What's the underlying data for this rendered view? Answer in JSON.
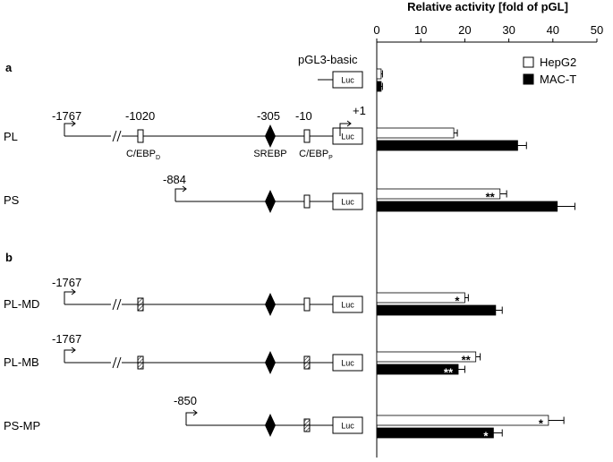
{
  "chart_data": {
    "type": "bar",
    "orientation": "horizontal",
    "title": "Relative activity [fold of pGL]",
    "categories": [
      "pGL3-basic",
      "PL",
      "PS",
      "PL-MD",
      "PL-MB",
      "PS-MP"
    ],
    "series": [
      {
        "name": "HepG2",
        "color": "#ffffff",
        "values": [
          1,
          17.5,
          28,
          20,
          22.5,
          39
        ],
        "errors": [
          0.3,
          0.8,
          1.5,
          0.8,
          1,
          3.5
        ],
        "significance": [
          null,
          null,
          "**",
          "*",
          "**",
          "*"
        ]
      },
      {
        "name": "MAC-T",
        "color": "#000000",
        "values": [
          1,
          32,
          41,
          27,
          18.5,
          26.5
        ],
        "errors": [
          0.3,
          2,
          4,
          1.5,
          1.5,
          2
        ],
        "significance": [
          null,
          null,
          null,
          null,
          "**",
          "*"
        ]
      }
    ],
    "xlim": [
      0,
      50
    ],
    "xticks": [
      0,
      10,
      20,
      30,
      40,
      50
    ],
    "grid": false,
    "legend": "top-right"
  },
  "diagram": {
    "panel_labels": [
      "a",
      "b"
    ],
    "luc": "Luc",
    "sites": {
      "cebp": "C/EBP",
      "d": "D",
      "p": "P",
      "srebp": "SREBP"
    },
    "positions": [
      "-1767",
      "-1020",
      "-305",
      "-10",
      "+1",
      "-884",
      "-1767",
      "-1767",
      "-850"
    ]
  }
}
